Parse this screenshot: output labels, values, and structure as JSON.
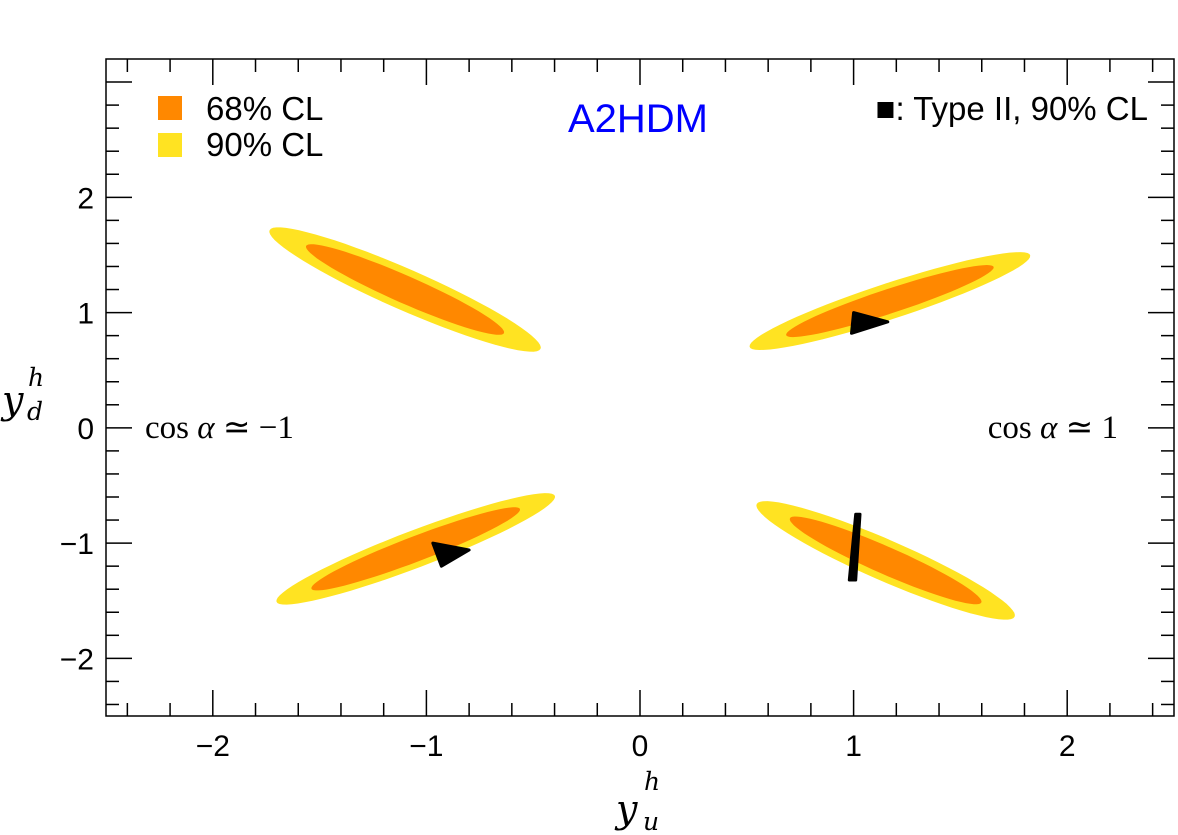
{
  "chart_data": {
    "type": "contour",
    "title": "A2HDM",
    "xlabel": "y_u^h",
    "ylabel": "y_d^h",
    "xlabel_base": "y",
    "xlabel_sup": "h",
    "xlabel_sub": "u",
    "ylabel_base": "y",
    "ylabel_sup": "h",
    "ylabel_sub": "d",
    "xlim": [
      -2.5,
      2.5
    ],
    "ylim": [
      -2.5,
      3.2
    ],
    "xticks": [
      -2,
      -1,
      0,
      1,
      2
    ],
    "xtick_labels": [
      "−2",
      "−1",
      "0",
      "1",
      "2"
    ],
    "yticks": [
      -2,
      -1,
      0,
      1,
      2
    ],
    "ytick_labels": [
      "−2",
      "−1",
      "0",
      "1",
      "2"
    ],
    "grid": false,
    "legend": [
      {
        "label": "68% CL",
        "color": "#ff8800"
      },
      {
        "label": "90% CL",
        "color": "#ffe322"
      }
    ],
    "legend_position": "top-left",
    "type2_label": "■: Type II, 90% CL",
    "title_color": "#0000ff",
    "annotations": [
      {
        "prefix": "cos ",
        "alpha": "α",
        "suffix": " ≃ −1",
        "position": "left"
      },
      {
        "prefix": "cos ",
        "alpha": "α",
        "suffix": " ≃ 1",
        "position": "right"
      }
    ],
    "regions": [
      {
        "name": "upper-left",
        "center": [
          -1.1,
          1.2
        ],
        "semi_major_90": 0.82,
        "semi_minor_90": 0.15,
        "semi_major_68": 0.6,
        "semi_minor_68": 0.1,
        "angle_deg": -40
      },
      {
        "name": "upper-right",
        "center": [
          1.17,
          1.1
        ],
        "semi_major_90": 0.77,
        "semi_minor_90": 0.14,
        "semi_major_68": 0.57,
        "semi_minor_68": 0.095,
        "angle_deg": 32
      },
      {
        "name": "lower-left",
        "center": [
          -1.05,
          -1.05
        ],
        "semi_major_90": 0.8,
        "semi_minor_90": 0.14,
        "semi_major_68": 0.6,
        "semi_minor_68": 0.095,
        "angle_deg": 36
      },
      {
        "name": "lower-right",
        "center": [
          1.15,
          -1.15
        ],
        "semi_major_90": 0.78,
        "semi_minor_90": 0.15,
        "semi_major_68": 0.58,
        "semi_minor_68": 0.1,
        "angle_deg": -40
      }
    ],
    "type2_regions": [
      {
        "name": "type2-upper-right",
        "points": [
          [
            1.0,
            1.0
          ],
          [
            0.99,
            0.82
          ],
          [
            1.16,
            0.92
          ]
        ]
      },
      {
        "name": "type2-lower-left",
        "points": [
          [
            -0.97,
            -1.0
          ],
          [
            -0.93,
            -1.2
          ],
          [
            -0.8,
            -1.06
          ]
        ]
      },
      {
        "name": "type2-lower-right-band",
        "points": [
          [
            1.01,
            -0.75
          ],
          [
            1.03,
            -0.75
          ],
          [
            1.01,
            -1.32
          ],
          [
            0.98,
            -1.32
          ]
        ]
      }
    ],
    "colors": {
      "cl68": "#ff8800",
      "cl90": "#ffe322",
      "type2": "#000000"
    }
  }
}
